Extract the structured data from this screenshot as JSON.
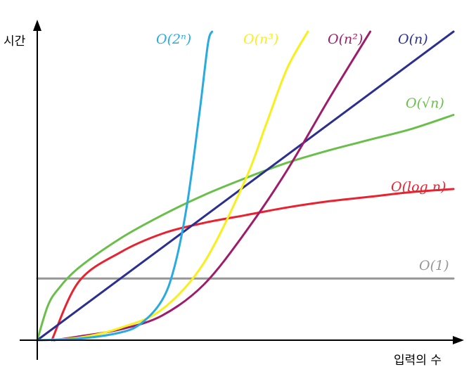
{
  "chart_data": {
    "type": "line",
    "ylabel": "시간",
    "xlabel": "입력의 수",
    "xlim": [
      0,
      10
    ],
    "ylim": [
      0,
      10
    ],
    "grid": false,
    "legend": "inline labels at curve ends",
    "series": [
      {
        "name": "O(1)",
        "color": "#969696",
        "x": [
          0,
          10
        ],
        "y": [
          2.0,
          2.0
        ]
      },
      {
        "name": "O(log n)",
        "color": "#e8222e",
        "x": [
          0.35,
          1.0,
          2.0,
          3.0,
          4.0,
          5.0,
          6.0,
          7.0,
          8.0,
          9.0,
          10.0
        ],
        "y": [
          0.0,
          1.9,
          2.85,
          3.45,
          3.8,
          4.05,
          4.3,
          4.5,
          4.65,
          4.8,
          4.9
        ]
      },
      {
        "name": "O(√n)",
        "color": "#6abf4b",
        "x": [
          0,
          0.25,
          0.5,
          1.0,
          2.0,
          3.0,
          4.0,
          5.0,
          6.0,
          7.0,
          8.0,
          9.0,
          10.0
        ],
        "y": [
          0.0,
          1.1,
          1.65,
          2.35,
          3.3,
          4.05,
          4.7,
          5.25,
          5.75,
          6.15,
          6.5,
          6.85,
          7.3
        ]
      },
      {
        "name": "O(n)",
        "color": "#2b2f8f",
        "x": [
          0,
          10
        ],
        "y": [
          0.0,
          10.0
        ]
      },
      {
        "name": "O(n²)",
        "color": "#9d1d6b",
        "x": [
          0.4,
          1.0,
          2.0,
          3.0,
          4.0,
          5.0,
          6.0,
          7.0,
          8.0
        ],
        "y": [
          0.0,
          0.12,
          0.35,
          0.8,
          1.8,
          3.5,
          5.5,
          7.8,
          10.0
        ]
      },
      {
        "name": "O(n³)",
        "color": "#f9ef1b",
        "x": [
          0,
          1.0,
          2.0,
          3.0,
          4.0,
          5.0,
          5.5,
          6.0,
          6.5
        ],
        "y": [
          0.0,
          0.08,
          0.4,
          1.0,
          2.5,
          5.2,
          7.0,
          8.8,
          10.0
        ]
      },
      {
        "name": "O(2ⁿ)",
        "color": "#29aae1",
        "x": [
          0,
          1.0,
          2.0,
          2.5,
          3.0,
          3.3,
          3.6,
          3.9,
          4.1,
          4.2
        ],
        "y": [
          0.0,
          0.05,
          0.25,
          0.55,
          1.3,
          2.4,
          4.4,
          7.4,
          9.6,
          10.0
        ]
      }
    ],
    "labels": [
      {
        "series": "O(2ⁿ)",
        "text": "O(2ⁿ)"
      },
      {
        "series": "O(n³)",
        "text": "O(n³)"
      },
      {
        "series": "O(n²)",
        "text": "O(n²)"
      },
      {
        "series": "O(n)",
        "text": "O(n)"
      },
      {
        "series": "O(√n)",
        "text": "O(√n)"
      },
      {
        "series": "O(log n)",
        "text": "O(log n)"
      },
      {
        "series": "O(1)",
        "text": "O(1)"
      }
    ]
  }
}
